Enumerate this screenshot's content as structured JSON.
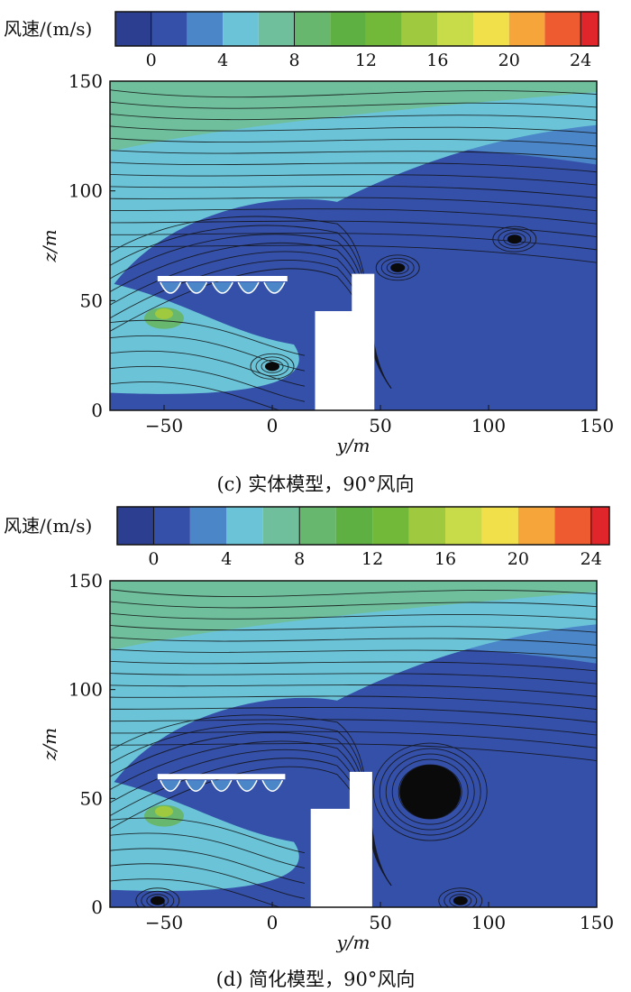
{
  "colorbar": {
    "label": "风速/(m/s)",
    "ticks": [
      "0",
      "4",
      "8",
      "12",
      "16",
      "20",
      "24"
    ],
    "min": -2,
    "max": 25,
    "levels": [
      -2,
      0,
      2,
      4,
      6,
      8,
      10,
      12,
      14,
      16,
      18,
      20,
      22,
      24,
      25
    ],
    "colors": [
      "#2b3e8f",
      "#3550a8",
      "#4a86c8",
      "#6bc3d8",
      "#6fbf9d",
      "#67b86e",
      "#5fb043",
      "#72b93a",
      "#9fc93e",
      "#c8dc4a",
      "#f1e04a",
      "#f6a53a",
      "#ee5b31",
      "#e0262a"
    ]
  },
  "chart_data": [
    {
      "type": "heatmap",
      "panel": "c",
      "caption": "(c) 实体模型，90°风向",
      "xlabel": "y/m",
      "ylabel": "z/m",
      "xlim": [
        -75,
        150
      ],
      "ylim": [
        0,
        150
      ],
      "xticks": [
        "−50",
        "0",
        "50",
        "100",
        "150"
      ],
      "yticks": [
        "0",
        "50",
        "100",
        "150"
      ],
      "building": {
        "y_start": 20,
        "y_end": 47,
        "height": 62,
        "step_y": 37,
        "step_height": 45
      },
      "canopy": {
        "y_start": -53,
        "y_end": 7,
        "z": 60
      },
      "vortices": [
        {
          "y": 112,
          "z": 78,
          "size": "small"
        },
        {
          "y": 58,
          "z": 65,
          "size": "small"
        },
        {
          "y": 0,
          "z": 20,
          "size": "small"
        }
      ]
    },
    {
      "type": "heatmap",
      "panel": "d",
      "caption": "(d) 简化模型，90°风向",
      "xlabel": "y/m",
      "ylabel": "z/m",
      "xlim": [
        -75,
        150
      ],
      "ylim": [
        0,
        150
      ],
      "xticks": [
        "−50",
        "0",
        "50",
        "100",
        "150"
      ],
      "yticks": [
        "0",
        "50",
        "100",
        "150"
      ],
      "building": {
        "y_start": 18,
        "y_end": 46,
        "height": 62,
        "step_y": 36,
        "step_height": 45
      },
      "canopy": {
        "y_start": -53,
        "y_end": 6,
        "z": 60
      },
      "vortices": [
        {
          "y": 73,
          "z": 53,
          "size": "large"
        },
        {
          "y": 87,
          "z": 3,
          "size": "small"
        },
        {
          "y": -53,
          "z": 3,
          "size": "small"
        }
      ]
    }
  ]
}
